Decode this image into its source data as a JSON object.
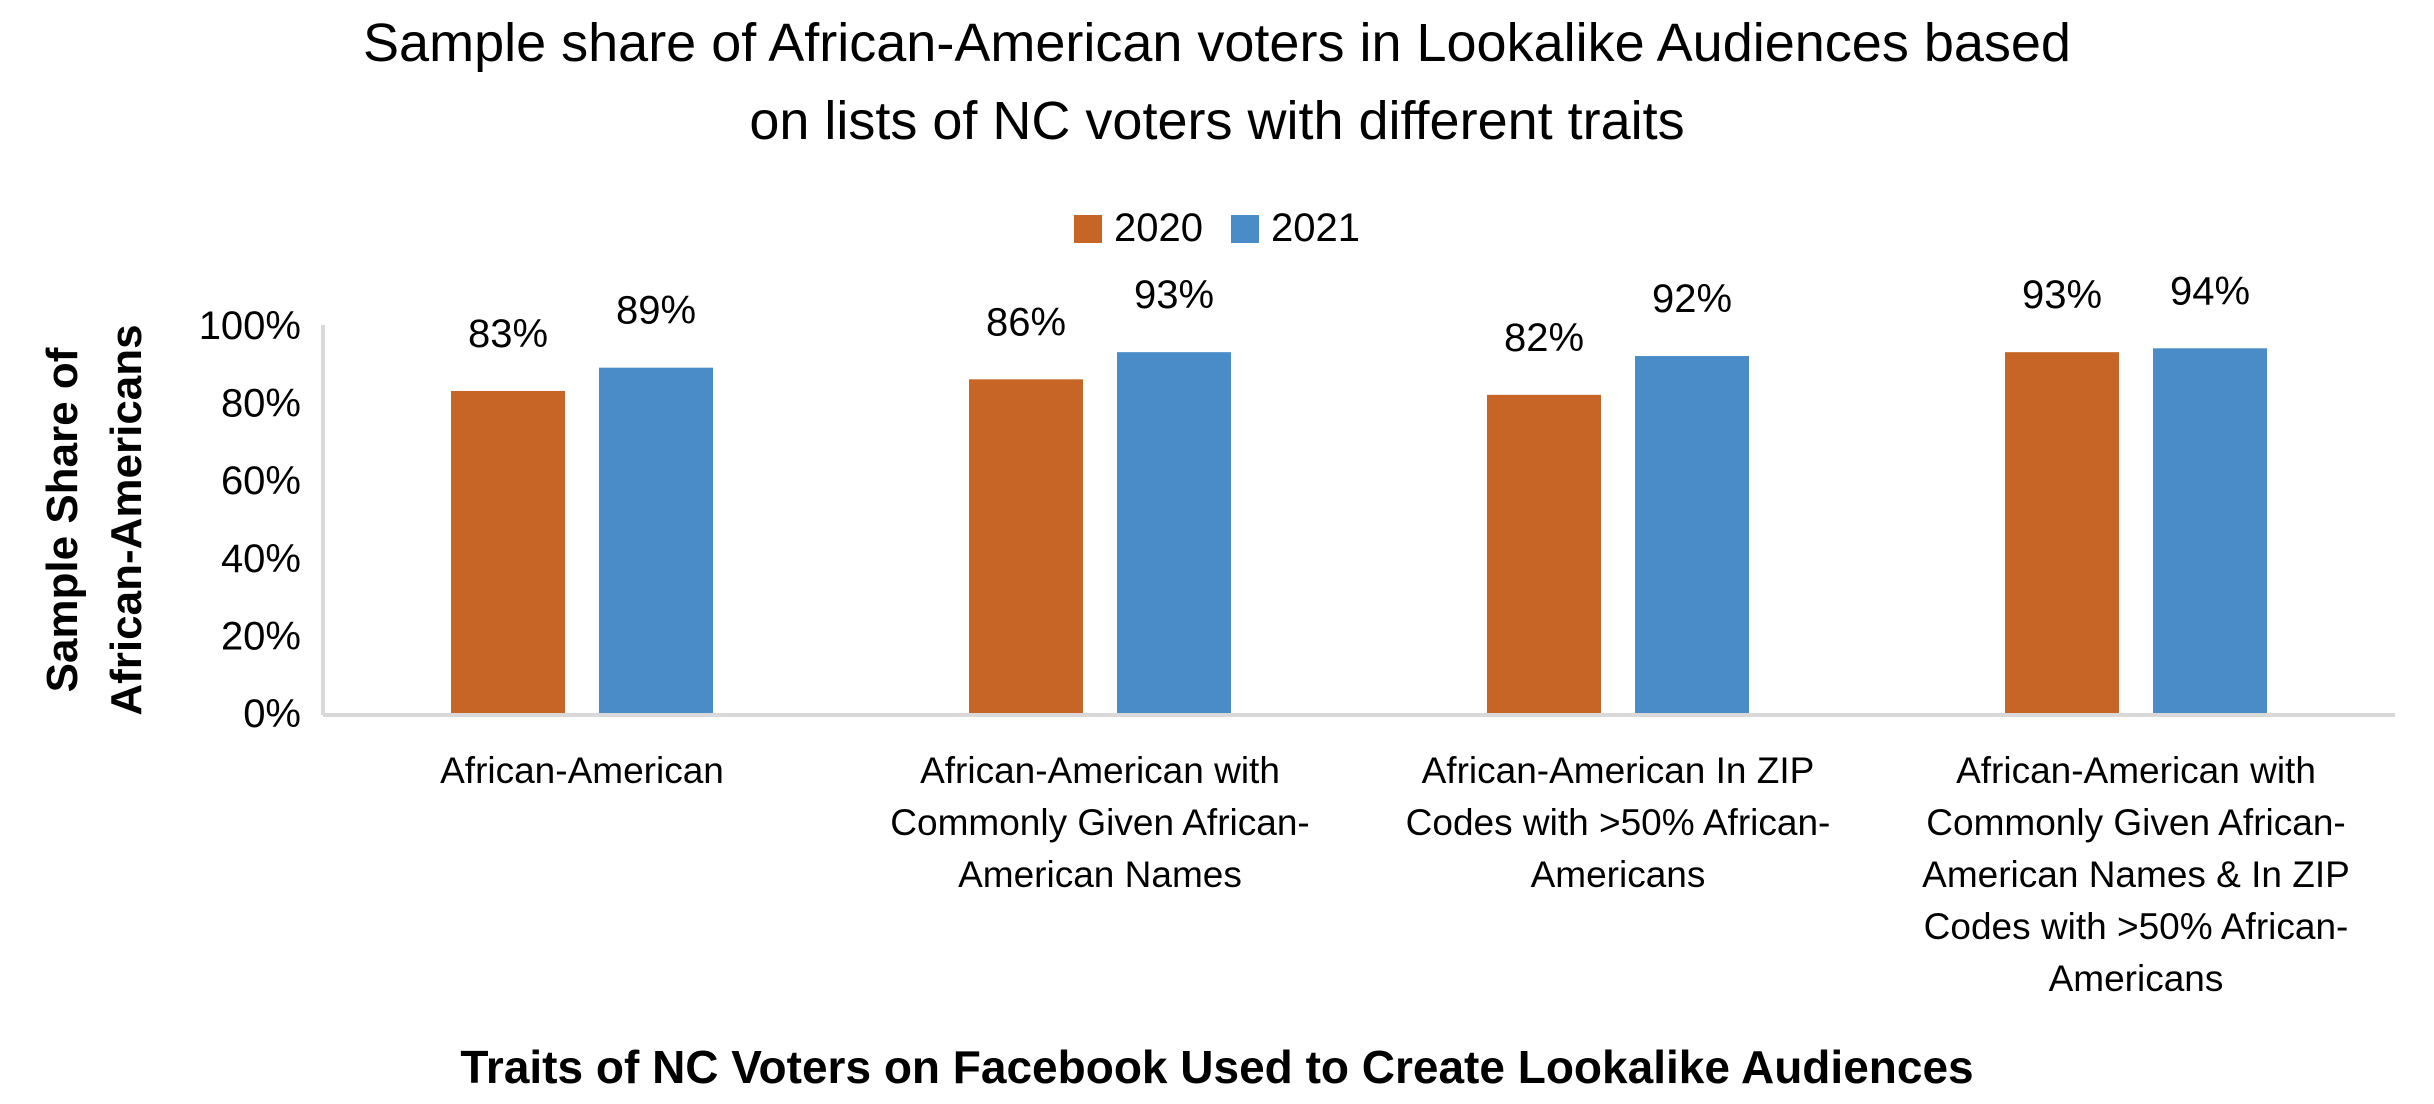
{
  "chart_data": {
    "type": "bar",
    "title_lines": [
      "Sample share of African-American voters in Lookalike Audiences based",
      "on lists of NC voters with different traits"
    ],
    "xlabel": "Traits of NC Voters on Facebook Used to Create Lookalike Audiences",
    "ylabel_lines": [
      "Sample Share of",
      "African-Americans"
    ],
    "categories": [
      "African-American",
      "African-American with Commonly Given African-American Names",
      "African-American In ZIP Codes with >50% African-Americans",
      "African-American with Commonly Given African-American Names & In ZIP Codes with >50% African-Americans"
    ],
    "category_lines": [
      [
        "African-American"
      ],
      [
        "African-American with",
        "Commonly Given African-",
        "American Names"
      ],
      [
        "African-American In ZIP",
        "Codes with >50% African-",
        "Americans"
      ],
      [
        "African-American with",
        "Commonly Given African-",
        "American Names & In ZIP",
        "Codes with >50% African-",
        "Americans"
      ]
    ],
    "series": [
      {
        "name": "2020",
        "color": "#C66526",
        "values": [
          83,
          86,
          82,
          93
        ],
        "labels": [
          "83%",
          "86%",
          "82%",
          "93%"
        ]
      },
      {
        "name": "2021",
        "color": "#4A8CC7",
        "values": [
          89,
          93,
          92,
          94
        ],
        "labels": [
          "89%",
          "93%",
          "92%",
          "94%"
        ]
      }
    ],
    "yticks": [
      "0%",
      "20%",
      "40%",
      "60%",
      "80%",
      "100%"
    ],
    "ylim": [
      0,
      100
    ],
    "grid": false,
    "legend": "top-center"
  }
}
